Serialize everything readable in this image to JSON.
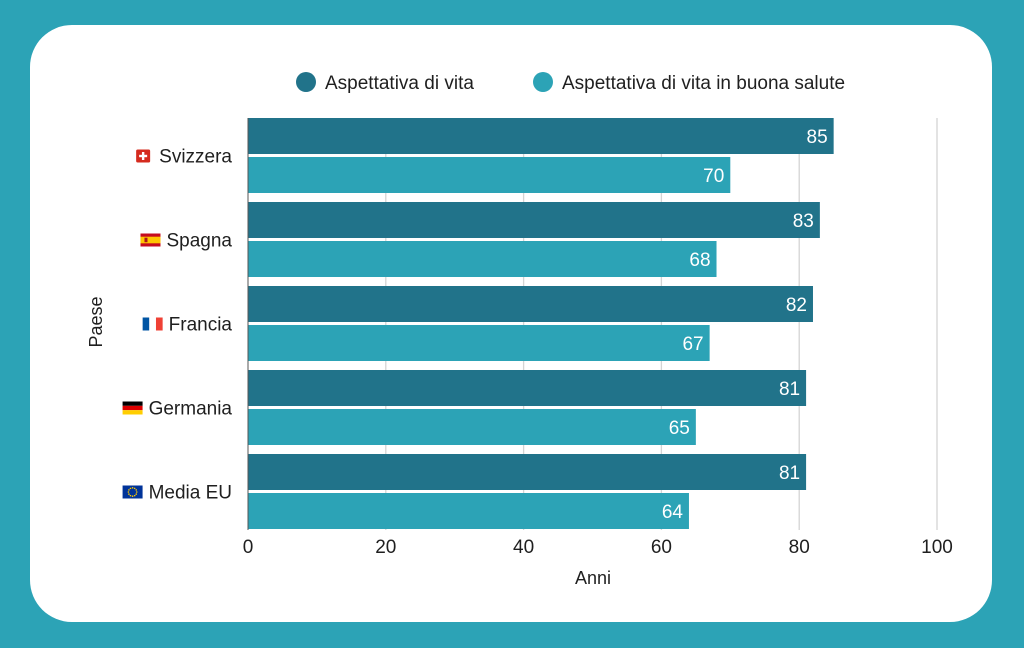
{
  "chart_data": {
    "type": "bar",
    "orientation": "horizontal",
    "categories": [
      "Svizzera",
      "Spagna",
      "Francia",
      "Germania",
      "Media EU"
    ],
    "series": [
      {
        "name": "Aspettativa di vita",
        "values": [
          85,
          83,
          82,
          81,
          81
        ],
        "color": "#21738a"
      },
      {
        "name": "Aspettativa di vita in buona salute",
        "values": [
          70,
          68,
          67,
          65,
          64
        ],
        "color": "#2ca3b6"
      }
    ],
    "xlabel": "Anni",
    "ylabel": "Paese",
    "xlim": [
      0,
      100
    ],
    "xticks": [
      0,
      20,
      40,
      60,
      80,
      100
    ],
    "grid": true,
    "legend_position": "top",
    "flags": [
      "switzerland-flag",
      "spain-flag",
      "france-flag",
      "germany-flag",
      "eu-flag"
    ]
  }
}
